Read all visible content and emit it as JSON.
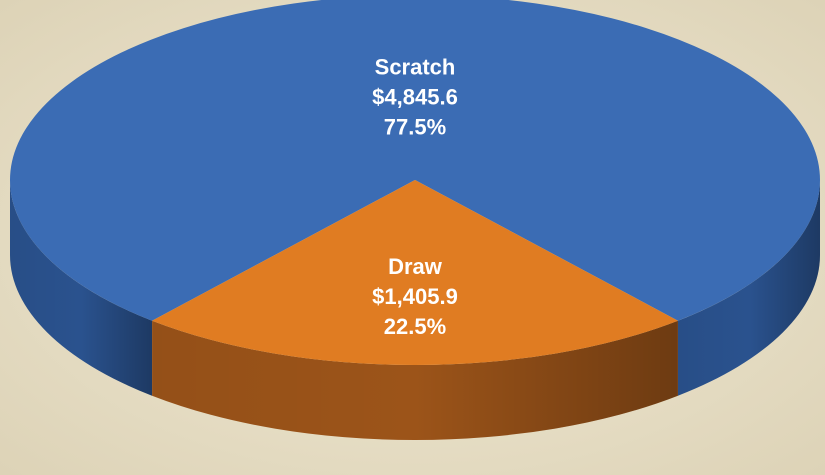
{
  "chart_data": {
    "type": "pie3d",
    "categories": [
      "Scratch",
      "Draw"
    ],
    "values": [
      4845.6,
      1405.9
    ],
    "value_labels": [
      "$4,845.6",
      "$1,405.9"
    ],
    "percents": [
      77.5,
      22.5
    ],
    "percent_labels": [
      "77.5%",
      "22.5%"
    ],
    "colors": [
      "#3b6cb4",
      "#e07c22"
    ],
    "side_colors": [
      "#2a528e",
      "#9c5419"
    ]
  }
}
